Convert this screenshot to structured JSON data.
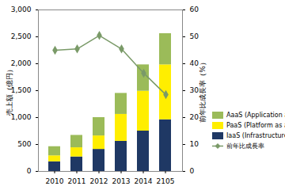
{
  "chart_data": {
    "type": "bar",
    "stacked": true,
    "grid": false,
    "legend": "right",
    "categories": [
      "2010",
      "2011",
      "2012",
      "2013",
      "2014",
      "2105"
    ],
    "y_label": "売上額（億円）",
    "y2_label": "前年比成長率（%）",
    "ylim": [
      0,
      3000
    ],
    "yticks": [
      0,
      500,
      {
        "value": 1000,
        "label": "1,000"
      },
      {
        "value": 1500,
        "label": "1,500"
      },
      {
        "value": 2000,
        "label": "2,000"
      },
      {
        "value": 2500,
        "label": "2,500"
      },
      {
        "value": 3000,
        "label": "3,000"
      }
    ],
    "y2lim": [
      0,
      60
    ],
    "y2ticks": [
      0,
      10,
      20,
      30,
      40,
      50,
      60
    ],
    "series": [
      {
        "name": "AaaS (Application as a Service)",
        "type": "bar",
        "color": "#9bbb59",
        "values": [
          170,
          230,
          340,
          390,
          490,
          580
        ]
      },
      {
        "name": "PaaS (Platform as a Service)",
        "type": "bar",
        "color": "#ffee00",
        "values": [
          110,
          170,
          250,
          500,
          740,
          1020
        ]
      },
      {
        "name": "IaaS (Infrastructure as a Service)",
        "type": "bar",
        "color": "#1f3864",
        "values": [
          180,
          270,
          410,
          560,
          750,
          960
        ]
      },
      {
        "name": "前年比成長率",
        "type": "line",
        "axis": "y2",
        "color": "#7a9a68",
        "marker": "diamond",
        "values": [
          45,
          45.5,
          50.5,
          45.5,
          36.5,
          28.5
        ]
      }
    ]
  }
}
